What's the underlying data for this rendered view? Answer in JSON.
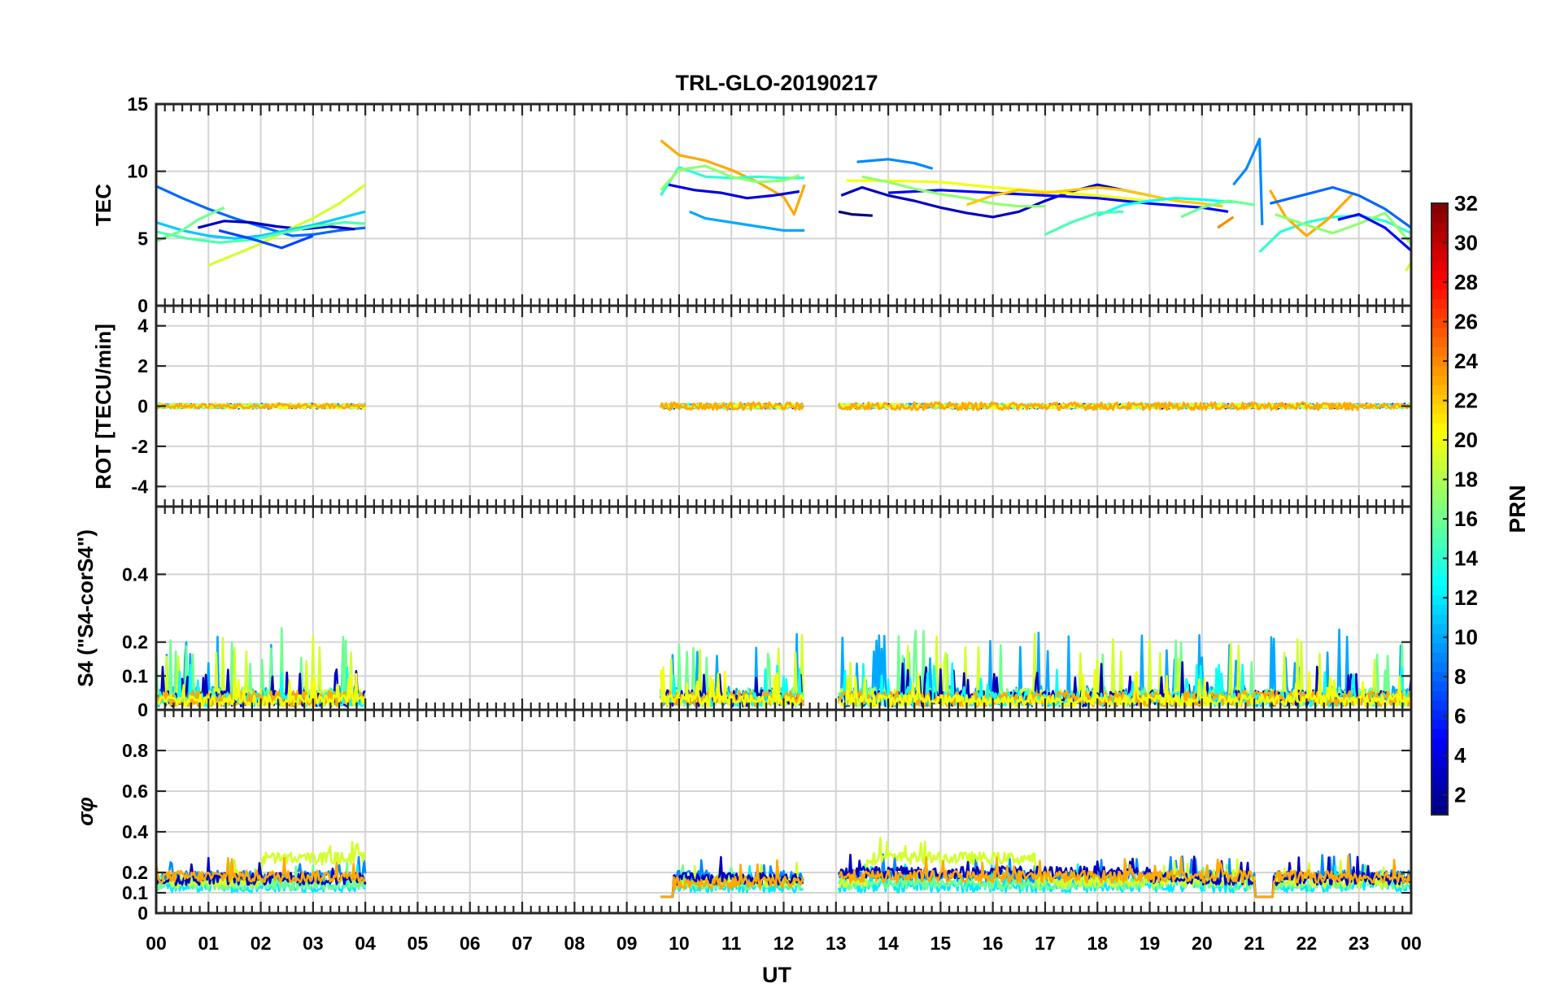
{
  "chart_data": {
    "type": "line",
    "title": "TRL-GLO-20190217",
    "xlabel": "UT",
    "x_range": [
      0,
      24
    ],
    "x_tick_labels": [
      "00",
      "01",
      "02",
      "03",
      "04",
      "05",
      "06",
      "07",
      "08",
      "09",
      "10",
      "11",
      "12",
      "13",
      "14",
      "15",
      "16",
      "17",
      "18",
      "19",
      "20",
      "21",
      "22",
      "23",
      "00"
    ],
    "panels": [
      {
        "id": "tec",
        "ylabel": "TEC",
        "ylim": [
          0,
          15
        ],
        "yticks": [
          0,
          5,
          10,
          15
        ],
        "ytick_labels": [
          "0",
          "5",
          "10",
          "15"
        ],
        "series": [
          {
            "prn": 8,
            "points": [
              [
                0,
                8.9
              ],
              [
                0.5,
                8.0
              ],
              [
                1,
                7.2
              ],
              [
                1.5,
                6.5
              ],
              [
                2,
                5.9
              ],
              [
                2.6,
                5.2
              ],
              [
                3,
                5.3
              ],
              [
                3.5,
                5.6
              ],
              [
                4,
                5.8
              ]
            ]
          },
          {
            "prn": 3,
            "points": [
              [
                0.8,
                5.8
              ],
              [
                1.3,
                6.3
              ],
              [
                1.8,
                6.2
              ],
              [
                2.3,
                5.9
              ],
              [
                2.8,
                5.7
              ],
              [
                3.3,
                5.9
              ],
              [
                3.8,
                5.7
              ]
            ]
          },
          {
            "prn": 19,
            "points": [
              [
                1,
                3.0
              ],
              [
                1.5,
                3.8
              ],
              [
                2,
                4.6
              ],
              [
                2.5,
                5.6
              ],
              [
                3,
                6.5
              ],
              [
                3.5,
                7.6
              ],
              [
                4,
                9.0
              ]
            ]
          },
          {
            "prn": 11,
            "points": [
              [
                0,
                6.2
              ],
              [
                0.5,
                5.6
              ],
              [
                1,
                5.2
              ],
              [
                1.5,
                5.0
              ],
              [
                2,
                5.2
              ],
              [
                2.5,
                5.6
              ],
              [
                3,
                6.0
              ],
              [
                3.5,
                6.5
              ],
              [
                4,
                7.0
              ]
            ]
          },
          {
            "prn": 15,
            "points": [
              [
                0,
                5.5
              ],
              [
                0.6,
                5.0
              ],
              [
                1.2,
                4.7
              ],
              [
                1.8,
                4.9
              ],
              [
                2.4,
                5.4
              ],
              [
                3,
                5.9
              ],
              [
                3.6,
                6.2
              ],
              [
                4,
                6.1
              ]
            ]
          },
          {
            "prn": 16,
            "points": [
              [
                0,
                4.8
              ],
              [
                0.5,
                5.6
              ],
              [
                0.8,
                6.4
              ],
              [
                1.3,
                7.3
              ]
            ]
          },
          {
            "prn": 7,
            "points": [
              [
                1.2,
                5.6
              ],
              [
                1.8,
                5.0
              ],
              [
                2.4,
                4.3
              ],
              [
                3,
                5.2
              ]
            ]
          },
          {
            "prn": 23,
            "points": [
              [
                9.65,
                12.3
              ],
              [
                10,
                11.2
              ],
              [
                10.5,
                10.8
              ],
              [
                11,
                10.1
              ],
              [
                11.5,
                9.2
              ],
              [
                12,
                8.1
              ],
              [
                12.2,
                6.8
              ],
              [
                12.4,
                9.0
              ]
            ]
          },
          {
            "prn": 14,
            "points": [
              [
                9.65,
                8.2
              ],
              [
                10,
                10.3
              ],
              [
                10.5,
                9.6
              ],
              [
                11,
                9.5
              ],
              [
                11.5,
                9.6
              ],
              [
                12,
                9.5
              ],
              [
                12.4,
                9.5
              ]
            ]
          },
          {
            "prn": 17,
            "points": [
              [
                9.65,
                8.6
              ],
              [
                10,
                10.1
              ],
              [
                10.5,
                10.4
              ],
              [
                11,
                9.6
              ],
              [
                11.5,
                9.2
              ],
              [
                12,
                9.3
              ],
              [
                12.3,
                9.7
              ]
            ]
          },
          {
            "prn": 10,
            "points": [
              [
                10.2,
                7.0
              ],
              [
                10.5,
                6.5
              ],
              [
                11,
                6.2
              ],
              [
                11.5,
                5.9
              ],
              [
                12,
                5.6
              ],
              [
                12.4,
                5.6
              ]
            ]
          },
          {
            "prn": 4,
            "points": [
              [
                9.8,
                9.0
              ],
              [
                10.3,
                8.6
              ],
              [
                10.8,
                8.4
              ],
              [
                11.3,
                8.0
              ],
              [
                11.8,
                8.2
              ],
              [
                12.3,
                8.5
              ]
            ]
          },
          {
            "prn": 9,
            "points": [
              [
                13.4,
                10.7
              ],
              [
                14,
                10.9
              ],
              [
                14.5,
                10.6
              ],
              [
                14.85,
                10.2
              ]
            ]
          },
          {
            "prn": 3,
            "points": [
              [
                13.1,
                8.2
              ],
              [
                13.5,
                8.8
              ],
              [
                14,
                8.2
              ],
              [
                14.5,
                7.8
              ],
              [
                15,
                7.3
              ],
              [
                15.5,
                6.9
              ],
              [
                16,
                6.6
              ],
              [
                16.5,
                7.0
              ],
              [
                17,
                7.8
              ],
              [
                17.5,
                8.5
              ],
              [
                18,
                9.0
              ],
              [
                18.5,
                8.6
              ],
              [
                19,
                8.2
              ]
            ]
          },
          {
            "prn": 1,
            "points": [
              [
                13.05,
                7.0
              ],
              [
                13.3,
                6.8
              ],
              [
                13.7,
                6.7
              ]
            ]
          },
          {
            "prn": 5,
            "points": [
              [
                14,
                8.4
              ],
              [
                15,
                8.6
              ],
              [
                16,
                8.4
              ],
              [
                17,
                8.2
              ],
              [
                18,
                8.0
              ],
              [
                19,
                7.6
              ],
              [
                20,
                7.3
              ],
              [
                20.5,
                7.0
              ]
            ]
          },
          {
            "prn": 20,
            "points": [
              [
                13.2,
                9.3
              ],
              [
                14,
                9.3
              ],
              [
                15,
                9.2
              ],
              [
                16,
                8.8
              ],
              [
                17,
                8.5
              ],
              [
                18,
                8.2
              ],
              [
                19,
                7.8
              ]
            ]
          },
          {
            "prn": 17,
            "points": [
              [
                13.5,
                9.6
              ],
              [
                14,
                9.2
              ],
              [
                14.5,
                8.7
              ],
              [
                15,
                8.3
              ],
              [
                15.5,
                8.0
              ],
              [
                16,
                7.6
              ],
              [
                16.5,
                7.4
              ],
              [
                17,
                7.4
              ]
            ]
          },
          {
            "prn": 22,
            "points": [
              [
                15.5,
                7.5
              ],
              [
                16,
                8.2
              ],
              [
                16.5,
                8.6
              ],
              [
                17,
                8.4
              ],
              [
                17.5,
                8.6
              ],
              [
                18,
                8.8
              ],
              [
                18.5,
                8.6
              ],
              [
                19,
                8.2
              ],
              [
                19.5,
                7.8
              ],
              [
                20,
                7.6
              ],
              [
                20.4,
                7.4
              ]
            ]
          },
          {
            "prn": 13,
            "points": [
              [
                18,
                6.7
              ],
              [
                18.5,
                7.5
              ],
              [
                19,
                7.8
              ],
              [
                19.5,
                8.0
              ],
              [
                20,
                7.9
              ],
              [
                20.6,
                7.7
              ]
            ]
          },
          {
            "prn": 15,
            "points": [
              [
                17,
                5.3
              ],
              [
                17.5,
                6.2
              ],
              [
                18,
                6.9
              ],
              [
                18.5,
                7.0
              ]
            ]
          },
          {
            "prn": 16,
            "points": [
              [
                19.6,
                6.6
              ],
              [
                20,
                7.3
              ],
              [
                20.5,
                7.8
              ],
              [
                21,
                7.5
              ]
            ]
          },
          {
            "prn": 24,
            "points": [
              [
                20.3,
                5.8
              ],
              [
                20.6,
                6.6
              ]
            ]
          },
          {
            "prn": 9,
            "points": [
              [
                20.6,
                9.0
              ],
              [
                20.85,
                10.2
              ],
              [
                21.1,
                12.4
              ],
              [
                21.15,
                6.0
              ]
            ]
          },
          {
            "prn": 14,
            "points": [
              [
                21.1,
                4.0
              ],
              [
                21.5,
                5.5
              ],
              [
                22,
                6.2
              ],
              [
                22.5,
                6.6
              ],
              [
                23,
                6.7
              ],
              [
                23.5,
                6.3
              ],
              [
                24,
                5.4
              ]
            ]
          },
          {
            "prn": 23,
            "points": [
              [
                21.3,
                8.6
              ],
              [
                21.6,
                6.6
              ],
              [
                22,
                5.2
              ],
              [
                22.4,
                6.4
              ],
              [
                22.9,
                8.4
              ]
            ]
          },
          {
            "prn": 8,
            "points": [
              [
                21.3,
                7.6
              ],
              [
                22,
                8.3
              ],
              [
                22.5,
                8.8
              ],
              [
                23,
                8.2
              ],
              [
                23.5,
                7.2
              ],
              [
                24,
                5.8
              ]
            ]
          },
          {
            "prn": 17,
            "points": [
              [
                21.4,
                6.8
              ],
              [
                22,
                6.0
              ],
              [
                22.5,
                5.4
              ],
              [
                23,
                6.1
              ],
              [
                23.5,
                6.9
              ],
              [
                24,
                4.6
              ]
            ]
          },
          {
            "prn": 5,
            "points": [
              [
                22.6,
                6.4
              ],
              [
                23,
                6.8
              ],
              [
                23.5,
                5.8
              ],
              [
                24,
                4.1
              ]
            ]
          },
          {
            "prn": 19,
            "points": [
              [
                23.9,
                2.6
              ],
              [
                24,
                3.2
              ]
            ]
          }
        ]
      },
      {
        "id": "rot",
        "ylabel": "ROT [TECU/min]",
        "ylim": [
          -5,
          5
        ],
        "yticks": [
          -4,
          -2,
          0,
          2,
          4
        ],
        "ytick_labels": [
          "-4",
          "-2",
          "0",
          "2",
          "4"
        ],
        "segments": [
          [
            0,
            4
          ],
          [
            9.65,
            12.4
          ],
          [
            13.05,
            24
          ]
        ],
        "level": 0.0,
        "noise": 0.15
      },
      {
        "id": "s4",
        "ylabel": "S4 (\"S4-corS4\")",
        "ylim": [
          0,
          0.6
        ],
        "yticks": [
          0,
          0.1,
          0.2,
          0.4
        ],
        "ytick_labels": [
          "0",
          "0.1",
          "0.2",
          "0.4"
        ],
        "segments": [
          [
            0,
            4
          ],
          [
            9.65,
            12.4
          ],
          [
            13.05,
            24
          ]
        ],
        "typical_range": [
          0.0,
          0.19
        ]
      },
      {
        "id": "sigma",
        "ylabel": "σφ",
        "ylim": [
          0,
          1
        ],
        "yticks": [
          0,
          0.1,
          0.2,
          0.4,
          0.6,
          0.8
        ],
        "ytick_labels": [
          "0",
          "0.1",
          "0.2",
          "0.4",
          "0.6",
          "0.8"
        ],
        "segments": [
          [
            0,
            4
          ],
          [
            9.65,
            12.4
          ],
          [
            13.05,
            24
          ]
        ],
        "typical_range": [
          0.05,
          0.4
        ]
      }
    ],
    "colorbar": {
      "label": "PRN",
      "range": [
        1,
        32
      ],
      "tick_labels": [
        "2",
        "4",
        "6",
        "8",
        "10",
        "12",
        "14",
        "16",
        "18",
        "20",
        "22",
        "24",
        "26",
        "28",
        "30",
        "32"
      ],
      "colormap": "jet"
    }
  }
}
